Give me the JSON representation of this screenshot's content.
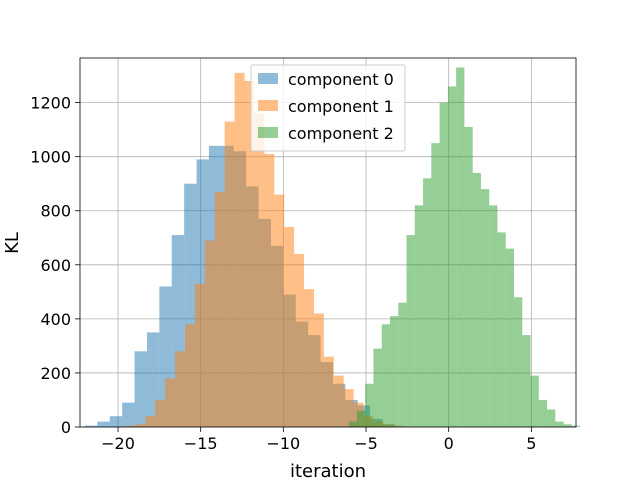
{
  "chart_data": {
    "type": "histogram",
    "title": "",
    "xlabel": "iteration",
    "ylabel": "KL",
    "xlim": [
      -22.3,
      7.7
    ],
    "ylim": [
      0,
      1365
    ],
    "grid": true,
    "legend_position": "top-center",
    "x_ticks": [
      {
        "value": -20,
        "label": "−20"
      },
      {
        "value": -15,
        "label": "−15"
      },
      {
        "value": -10,
        "label": "−10"
      },
      {
        "value": -5,
        "label": "−5"
      },
      {
        "value": 0,
        "label": "0"
      },
      {
        "value": 5,
        "label": "5"
      }
    ],
    "y_ticks": [
      {
        "value": 0,
        "label": "0"
      },
      {
        "value": 200,
        "label": "200"
      },
      {
        "value": 400,
        "label": "400"
      },
      {
        "value": 600,
        "label": "600"
      },
      {
        "value": 800,
        "label": "800"
      },
      {
        "value": 1000,
        "label": "1000"
      },
      {
        "value": 1200,
        "label": "1200"
      }
    ],
    "series": [
      {
        "name": "component 0",
        "color": "#1f77b4",
        "opacity": 0.5,
        "bin_start": -22.0,
        "bin_width": 0.75,
        "counts": [
          5,
          20,
          40,
          90,
          280,
          350,
          520,
          710,
          900,
          990,
          1040,
          1040,
          1020,
          890,
          770,
          670,
          490,
          390,
          340,
          240,
          160,
          100,
          80,
          30,
          10
        ]
      },
      {
        "name": "component 1",
        "color": "#ff7f0e",
        "opacity": 0.5,
        "bin_start": -19.55,
        "bin_width": 0.6,
        "counts": [
          5,
          10,
          40,
          100,
          180,
          280,
          380,
          530,
          690,
          870,
          1130,
          1310,
          1280,
          1160,
          1010,
          860,
          740,
          640,
          510,
          420,
          260,
          190,
          140,
          90,
          40,
          20,
          10,
          5,
          2
        ]
      },
      {
        "name": "component 2",
        "color": "#2ca02c",
        "opacity": 0.5,
        "bin_start": -6.05,
        "bin_width": 0.5,
        "counts": [
          20,
          60,
          160,
          290,
          380,
          410,
          460,
          710,
          820,
          920,
          1050,
          1200,
          1260,
          1330,
          1110,
          940,
          880,
          820,
          720,
          660,
          480,
          340,
          190,
          100,
          65,
          20,
          10,
          5
        ]
      }
    ]
  }
}
